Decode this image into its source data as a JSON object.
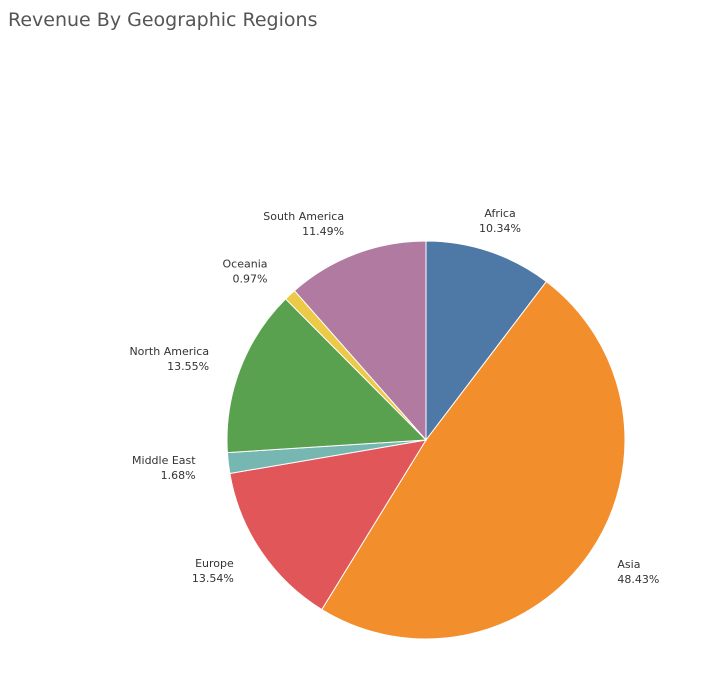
{
  "chart_data": {
    "type": "pie",
    "title": "Revenue By Geographic Regions",
    "slices": [
      {
        "label": "Africa",
        "value": 10.34,
        "value_label": "10.34%",
        "color": "#4e79a7"
      },
      {
        "label": "Asia",
        "value": 48.43,
        "value_label": "48.43%",
        "color": "#f28e2b"
      },
      {
        "label": "Europe",
        "value": 13.54,
        "value_label": "13.54%",
        "color": "#e15759"
      },
      {
        "label": "Middle East",
        "value": 1.68,
        "value_label": "1.68%",
        "color": "#76b7b2"
      },
      {
        "label": "North America",
        "value": 13.55,
        "value_label": "13.55%",
        "color": "#59a14f"
      },
      {
        "label": "Oceania",
        "value": 0.97,
        "value_label": "0.97%",
        "color": "#edc948"
      },
      {
        "label": "South America",
        "value": 11.49,
        "value_label": "11.49%",
        "color": "#b07aa1"
      }
    ],
    "start": "12 o'clock",
    "direction": "clockwise",
    "legend": "none",
    "labels": "outside"
  }
}
